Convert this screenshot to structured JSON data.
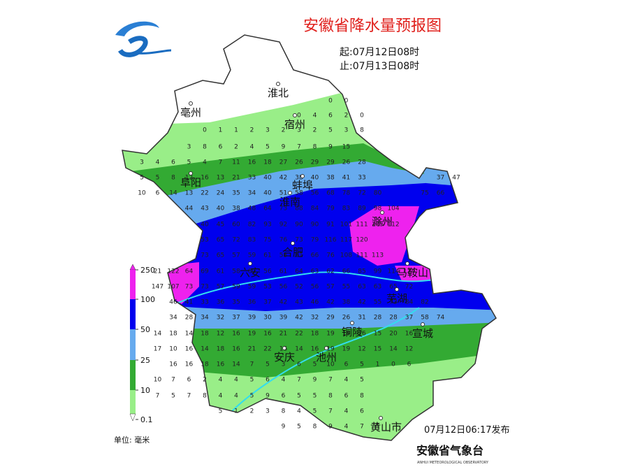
{
  "title": "安徽省降水量预报图",
  "period": {
    "start": "起:07月12日08时",
    "end": "止:07月13日08时"
  },
  "cities": [
    "淮北",
    "亳州",
    "宿州",
    "阜阳",
    "蚌埠",
    "淮南",
    "滁州",
    "合肥",
    "六安",
    "马鞍山",
    "芜湖",
    "宣城",
    "铜陵",
    "安庆",
    "池州",
    "黄山市"
  ],
  "grid": [
    [
      null,
      null,
      null,
      null,
      null,
      null,
      null,
      null,
      null,
      null,
      null,
      null,
      0,
      0
    ],
    [
      null,
      null,
      null,
      null,
      null,
      null,
      null,
      null,
      null,
      null,
      0,
      4,
      6,
      2,
      0
    ],
    [
      null,
      null,
      null,
      null,
      0,
      1,
      1,
      2,
      3,
      2,
      3,
      2,
      5,
      3,
      8
    ],
    [
      null,
      null,
      null,
      3,
      8,
      6,
      2,
      4,
      5,
      9,
      7,
      8,
      9,
      15
    ],
    [
      3,
      4,
      6,
      5,
      4,
      7,
      11,
      16,
      18,
      27,
      26,
      29,
      29,
      26,
      28
    ],
    [
      5,
      5,
      8,
      12,
      16,
      13,
      21,
      33,
      40,
      42,
      38,
      40,
      38,
      41,
      33,
      null,
      null,
      null,
      null,
      37,
      47
    ],
    [
      10,
      6,
      14,
      13,
      22,
      24,
      35,
      34,
      40,
      51,
      58,
      56,
      68,
      78,
      72,
      80,
      null,
      null,
      75,
      66
    ],
    [
      null,
      null,
      null,
      44,
      43,
      40,
      38,
      48,
      64,
      73,
      88,
      84,
      79,
      83,
      89,
      98,
      104
    ],
    [
      null,
      null,
      null,
      null,
      40,
      45,
      60,
      82,
      93,
      92,
      90,
      90,
      91,
      101,
      111,
      105,
      112
    ],
    [
      null,
      null,
      null,
      null,
      53,
      65,
      72,
      83,
      75,
      76,
      73,
      79,
      116,
      117,
      120
    ],
    [
      null,
      null,
      null,
      null,
      73,
      65,
      57,
      59,
      61,
      58,
      61,
      66,
      76,
      108,
      111,
      113
    ],
    [
      null,
      21,
      122,
      64,
      69,
      61,
      58,
      60,
      56,
      61,
      64,
      63,
      62,
      66,
      85,
      99,
      114,
      124
    ],
    [
      null,
      147,
      107,
      73,
      73,
      57,
      59,
      59,
      53,
      56,
      52,
      56,
      57,
      55,
      63,
      63,
      65,
      72
    ],
    [
      null,
      null,
      46,
      41,
      33,
      36,
      35,
      36,
      37,
      42,
      43,
      46,
      42,
      38,
      42,
      55,
      73,
      84,
      82
    ],
    [
      null,
      null,
      34,
      28,
      34,
      32,
      37,
      39,
      30,
      39,
      42,
      32,
      29,
      26,
      31,
      28,
      28,
      37,
      58,
      74
    ],
    [
      null,
      14,
      18,
      14,
      18,
      12,
      16,
      19,
      16,
      21,
      22,
      18,
      19,
      18,
      16,
      15,
      20,
      16
    ],
    [
      null,
      17,
      10,
      16,
      14,
      18,
      16,
      21,
      22,
      16,
      14,
      16,
      19,
      19,
      12,
      15,
      14,
      12
    ],
    [
      null,
      null,
      16,
      16,
      18,
      16,
      14,
      7,
      5,
      3,
      6,
      5,
      10,
      6,
      5,
      1,
      0,
      6
    ],
    [
      null,
      10,
      7,
      6,
      2,
      4,
      4,
      5,
      6,
      4,
      7,
      9,
      7,
      4,
      5
    ],
    [
      null,
      7,
      5,
      7,
      8,
      4,
      4,
      5,
      9,
      6,
      5,
      5,
      8,
      6,
      8
    ],
    [
      null,
      null,
      null,
      null,
      null,
      5,
      1,
      2,
      3,
      8,
      4,
      5,
      7,
      4,
      6
    ],
    [
      null,
      null,
      null,
      null,
      null,
      null,
      null,
      null,
      null,
      9,
      5,
      8,
      9,
      4,
      7,
      5
    ]
  ],
  "legend": {
    "levels": [
      250,
      100,
      50,
      25,
      10,
      0.1
    ],
    "unit": "单位: 毫米"
  },
  "issued": "07月12日06:17发布",
  "issuer": "安徽省气象台",
  "issuer_en": "ANHUI METEOROLOGICAL OBSERVATORY"
}
